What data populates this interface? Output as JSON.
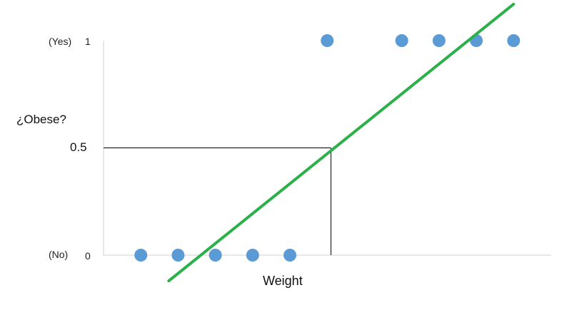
{
  "chart_data": {
    "type": "scatter",
    "title": "",
    "xlabel": "Weight",
    "ylabel": "¿Obese?",
    "y_ticks": [
      {
        "value": 0,
        "label": "0",
        "category": "(No)"
      },
      {
        "value": 1,
        "label": "1",
        "category": "(Yes)"
      }
    ],
    "threshold": {
      "value": 0.5,
      "label": "0.5",
      "x": 6.1
    },
    "xlim": [
      0,
      12
    ],
    "ylim": [
      0,
      1
    ],
    "grid": false,
    "points": [
      {
        "x": 1,
        "y": 0
      },
      {
        "x": 2,
        "y": 0
      },
      {
        "x": 3,
        "y": 0
      },
      {
        "x": 4,
        "y": 0
      },
      {
        "x": 5,
        "y": 0
      },
      {
        "x": 6,
        "y": 1
      },
      {
        "x": 8,
        "y": 1
      },
      {
        "x": 9,
        "y": 1
      },
      {
        "x": 10,
        "y": 1
      },
      {
        "x": 11,
        "y": 1
      }
    ],
    "fit_line": {
      "x1": 1.75,
      "y1": -0.12,
      "x2": 11.0,
      "y2": 1.17
    },
    "colors": {
      "points": "#5b9bd5",
      "fit_line": "#2bb04a",
      "axis": "#d0d0d0",
      "guide": "#000000"
    }
  }
}
